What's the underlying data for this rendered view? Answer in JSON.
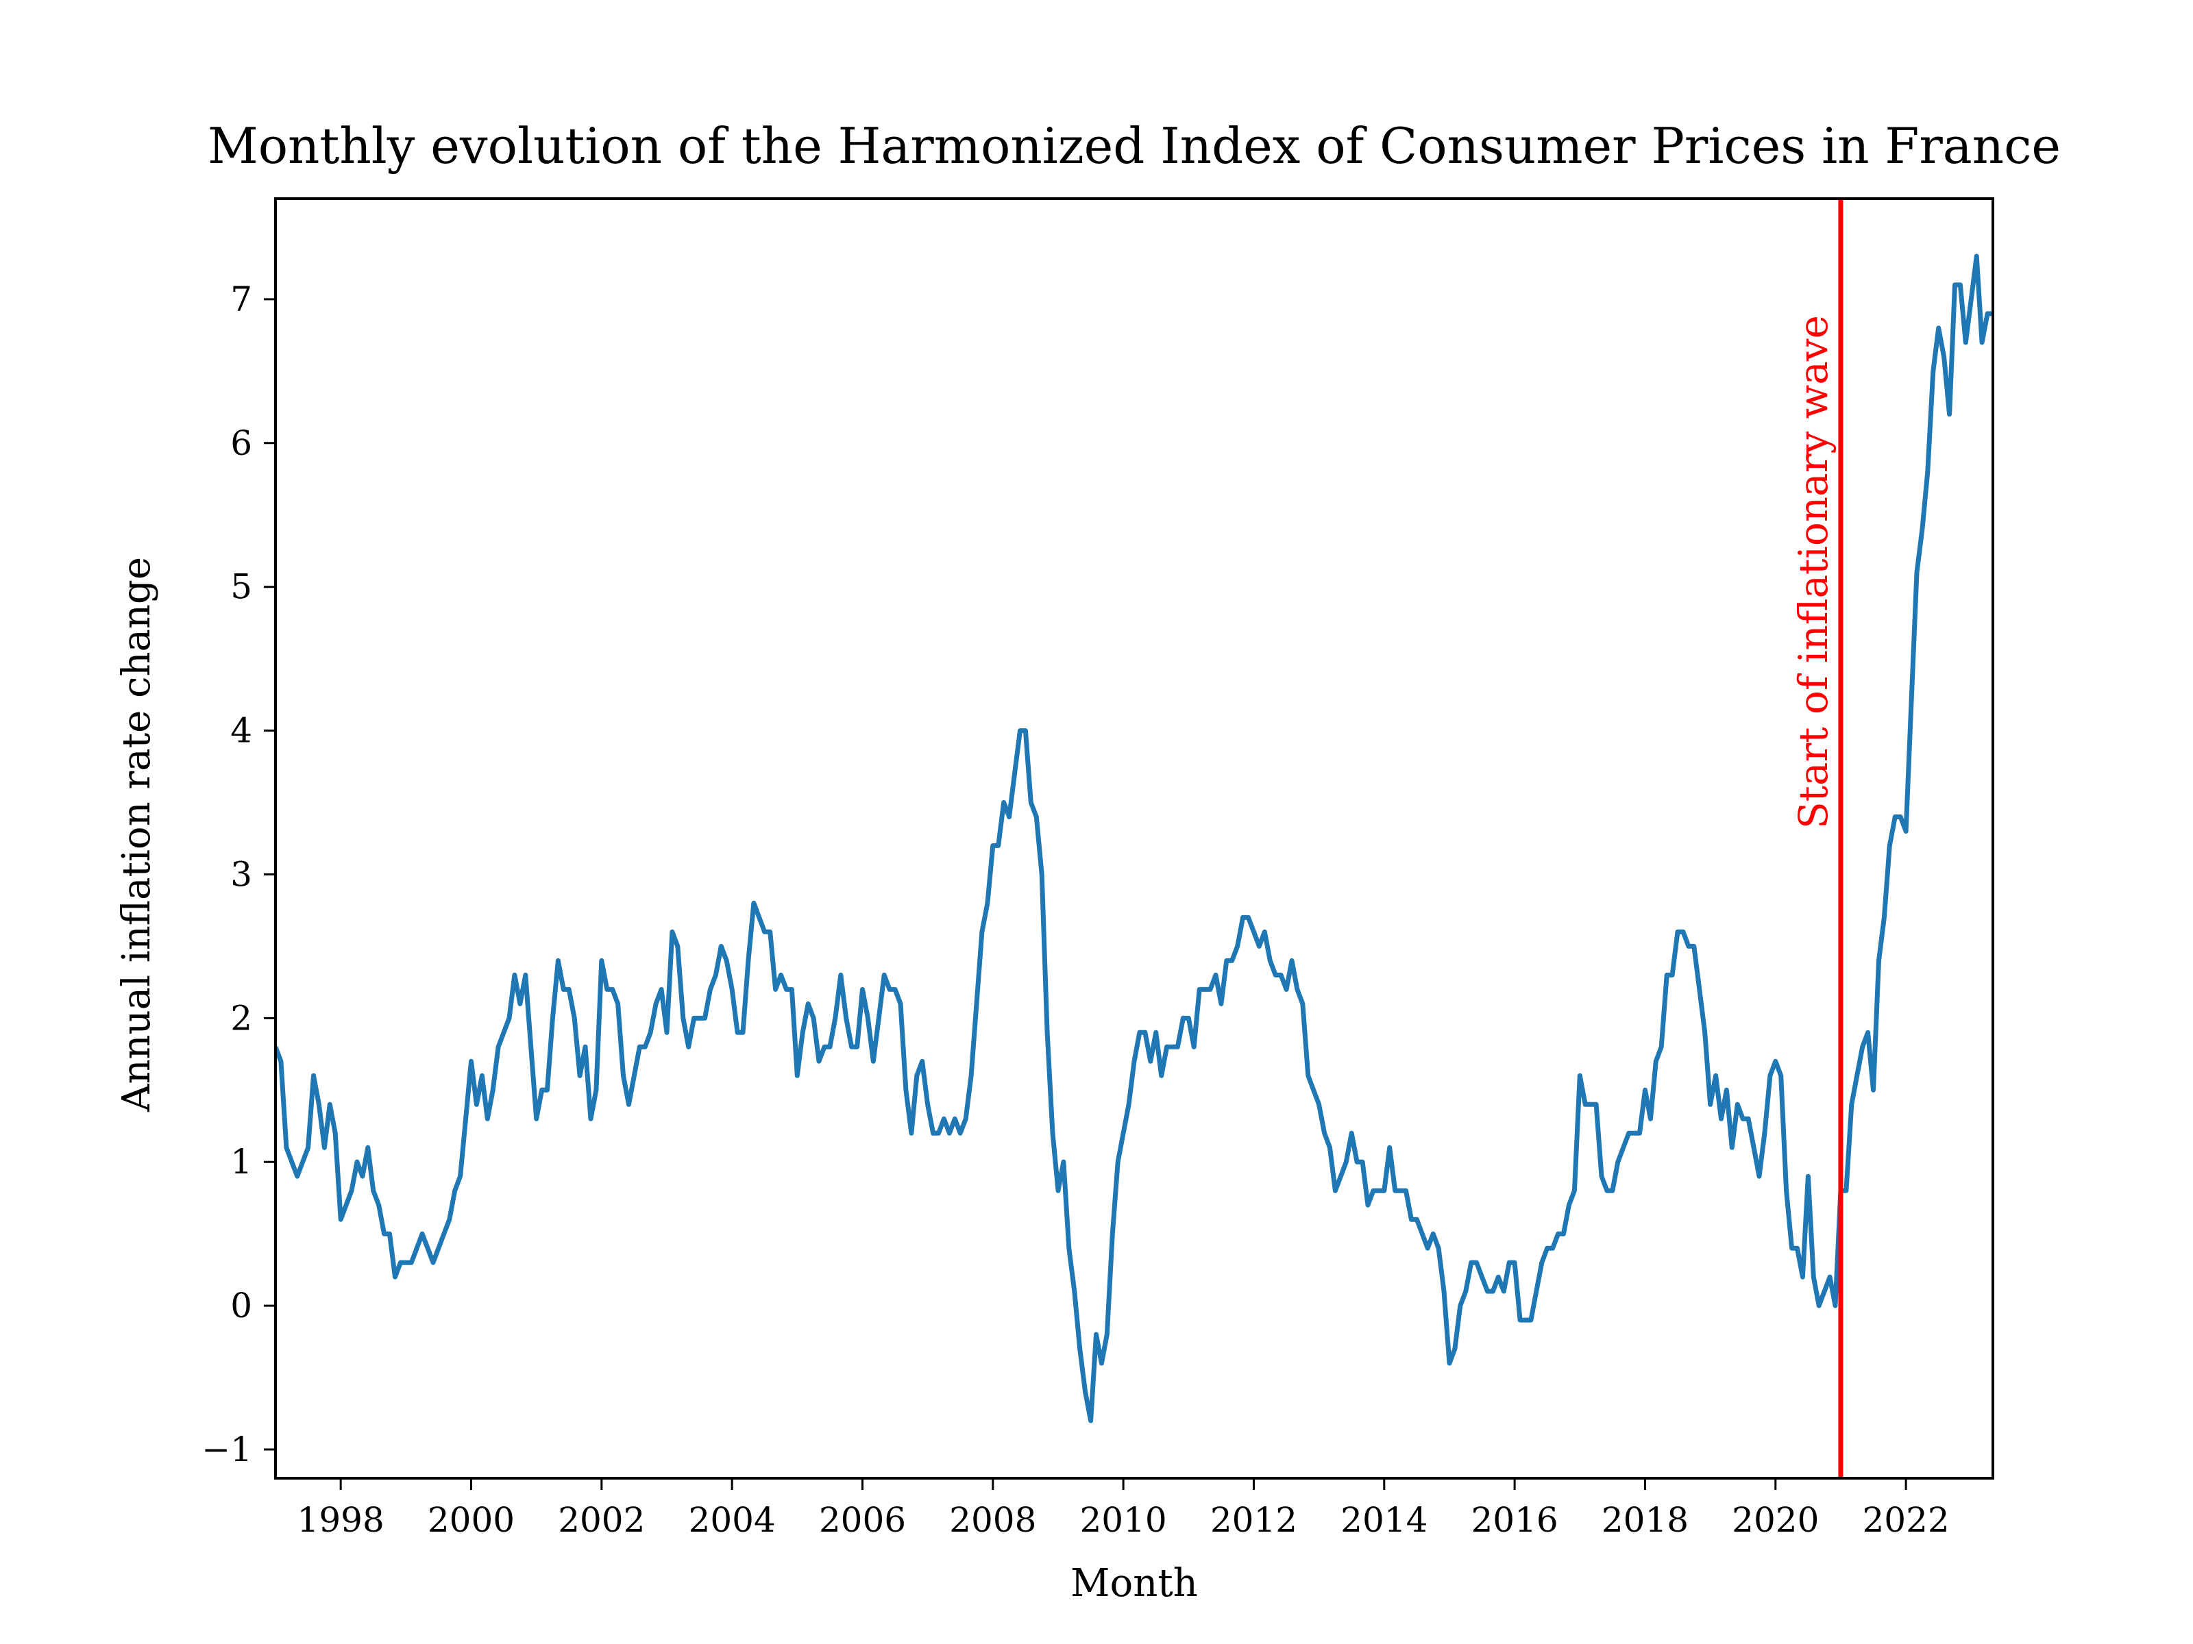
{
  "chart_data": {
    "type": "line",
    "title": "Monthly evolution of the Harmonized Index of Consumer Prices in France",
    "xlabel": "Month",
    "ylabel": "Annual inflation rate change",
    "xlim": [
      "1997-01",
      "2023-05"
    ],
    "ylim": [
      -1.2,
      7.7
    ],
    "x_tick_labels": [
      "1998",
      "2000",
      "2002",
      "2004",
      "2006",
      "2008",
      "2010",
      "2012",
      "2014",
      "2016",
      "2018",
      "2020",
      "2022"
    ],
    "y_tick_labels": [
      "−1",
      "0",
      "1",
      "2",
      "3",
      "4",
      "5",
      "6",
      "7"
    ],
    "y_ticks": [
      -1,
      0,
      1,
      2,
      3,
      4,
      5,
      6,
      7
    ],
    "grid": false,
    "colors": {
      "line": "#1f77b4",
      "annotation": "#ff0000"
    },
    "series": [
      {
        "x_start": "1997-01",
        "frequency": "monthly",
        "values": [
          1.8,
          1.7,
          1.1,
          1.0,
          0.9,
          1.0,
          1.1,
          1.6,
          1.4,
          1.1,
          1.4,
          1.2,
          0.6,
          0.7,
          0.8,
          1.0,
          0.9,
          1.1,
          0.8,
          0.7,
          0.5,
          0.5,
          0.2,
          0.3,
          0.3,
          0.3,
          0.4,
          0.5,
          0.4,
          0.3,
          0.4,
          0.5,
          0.6,
          0.8,
          0.9,
          1.3,
          1.7,
          1.4,
          1.6,
          1.3,
          1.5,
          1.8,
          1.9,
          2.0,
          2.3,
          2.1,
          2.3,
          1.8,
          1.3,
          1.5,
          1.5,
          2.0,
          2.4,
          2.2,
          2.2,
          2.0,
          1.6,
          1.8,
          1.3,
          1.5,
          2.4,
          2.2,
          2.2,
          2.1,
          1.6,
          1.4,
          1.6,
          1.8,
          1.8,
          1.9,
          2.1,
          2.2,
          1.9,
          2.6,
          2.5,
          2.0,
          1.8,
          2.0,
          2.0,
          2.0,
          2.2,
          2.3,
          2.5,
          2.4,
          2.2,
          1.9,
          1.9,
          2.4,
          2.8,
          2.7,
          2.6,
          2.6,
          2.2,
          2.3,
          2.2,
          2.2,
          1.6,
          1.9,
          2.1,
          2.0,
          1.7,
          1.8,
          1.8,
          2.0,
          2.3,
          2.0,
          1.8,
          1.8,
          2.2,
          2.0,
          1.7,
          2.0,
          2.3,
          2.2,
          2.2,
          2.1,
          1.5,
          1.2,
          1.6,
          1.7,
          1.4,
          1.2,
          1.2,
          1.3,
          1.2,
          1.3,
          1.2,
          1.3,
          1.6,
          2.1,
          2.6,
          2.8,
          3.2,
          3.2,
          3.5,
          3.4,
          3.7,
          4.0,
          4.0,
          3.5,
          3.4,
          3.0,
          1.9,
          1.2,
          0.8,
          1.0,
          0.4,
          0.1,
          -0.3,
          -0.6,
          -0.8,
          -0.2,
          -0.4,
          -0.2,
          0.5,
          1.0,
          1.2,
          1.4,
          1.7,
          1.9,
          1.9,
          1.7,
          1.9,
          1.6,
          1.8,
          1.8,
          1.8,
          2.0,
          2.0,
          1.8,
          2.2,
          2.2,
          2.2,
          2.3,
          2.1,
          2.4,
          2.4,
          2.5,
          2.7,
          2.7,
          2.6,
          2.5,
          2.6,
          2.4,
          2.3,
          2.3,
          2.2,
          2.4,
          2.2,
          2.1,
          1.6,
          1.5,
          1.4,
          1.2,
          1.1,
          0.8,
          0.9,
          1.0,
          1.2,
          1.0,
          1.0,
          0.7,
          0.8,
          0.8,
          0.8,
          1.1,
          0.8,
          0.8,
          0.8,
          0.6,
          0.6,
          0.5,
          0.4,
          0.5,
          0.4,
          0.1,
          -0.4,
          -0.3,
          0.0,
          0.1,
          0.3,
          0.3,
          0.2,
          0.1,
          0.1,
          0.2,
          0.1,
          0.3,
          0.3,
          -0.1,
          -0.1,
          -0.1,
          0.1,
          0.3,
          0.4,
          0.4,
          0.5,
          0.5,
          0.7,
          0.8,
          1.6,
          1.4,
          1.4,
          1.4,
          0.9,
          0.8,
          0.8,
          1.0,
          1.1,
          1.2,
          1.2,
          1.2,
          1.5,
          1.3,
          1.7,
          1.8,
          2.3,
          2.3,
          2.6,
          2.6,
          2.5,
          2.5,
          2.2,
          1.9,
          1.4,
          1.6,
          1.3,
          1.5,
          1.1,
          1.4,
          1.3,
          1.3,
          1.1,
          0.9,
          1.2,
          1.6,
          1.7,
          1.6,
          0.8,
          0.4,
          0.4,
          0.2,
          0.9,
          0.2,
          0.0,
          0.1,
          0.2,
          0.0,
          0.8,
          0.8,
          1.4,
          1.6,
          1.8,
          1.9,
          1.5,
          2.4,
          2.7,
          3.2,
          3.4,
          3.4,
          3.3,
          4.2,
          5.1,
          5.4,
          5.8,
          6.5,
          6.8,
          6.6,
          6.2,
          7.1,
          7.1,
          6.7,
          7.0,
          7.3,
          6.7,
          6.9,
          6.9
        ]
      }
    ],
    "annotations": [
      {
        "type": "vertical-line",
        "x": "2021-01",
        "label": "Start of inflationary wave"
      }
    ]
  }
}
